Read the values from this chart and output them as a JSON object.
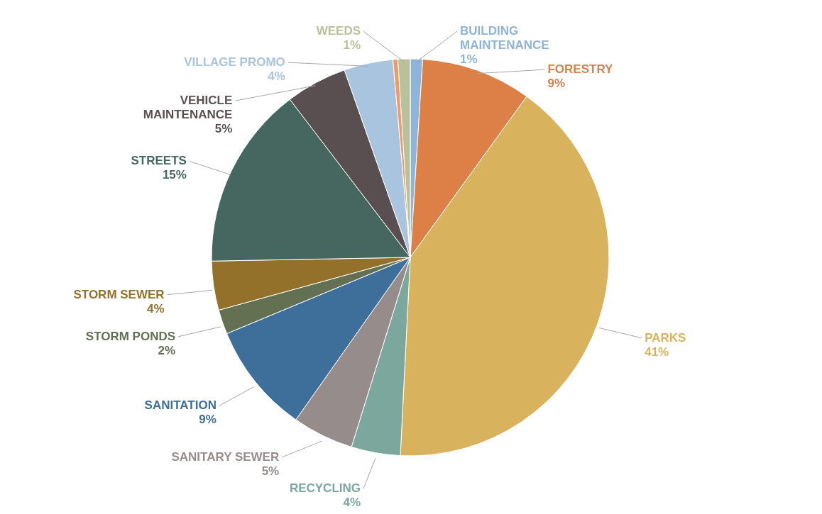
{
  "chart_data": {
    "type": "pie",
    "categories": [
      "BUILDING MAINTENANCE",
      "FORESTRY",
      "PARKS",
      "RECYCLING",
      "SANITARY SEWER",
      "SANITATION",
      "STORM PONDS",
      "STORM SEWER",
      "STREETS",
      "VEHICLE MAINTENANCE",
      "VILLAGE PROMO",
      null,
      "WEEDS"
    ],
    "values": [
      1,
      9,
      41,
      4,
      5,
      9,
      2,
      4,
      15,
      5,
      4,
      0.4,
      1
    ],
    "value_labels": [
      "1%",
      "9%",
      "41%",
      "4%",
      "5%",
      "9%",
      "2%",
      "4%",
      "15%",
      "5%",
      "4%",
      null,
      "1%"
    ],
    "colors": [
      "#8fb4d9",
      "#dd8047",
      "#d8b25c",
      "#7ba79d",
      "#968c8c",
      "#3e6e9a",
      "#637052",
      "#94712b",
      "#456760",
      "#5a4f50",
      "#a9c4de",
      "#f09a6a",
      "#b9c19a"
    ]
  }
}
